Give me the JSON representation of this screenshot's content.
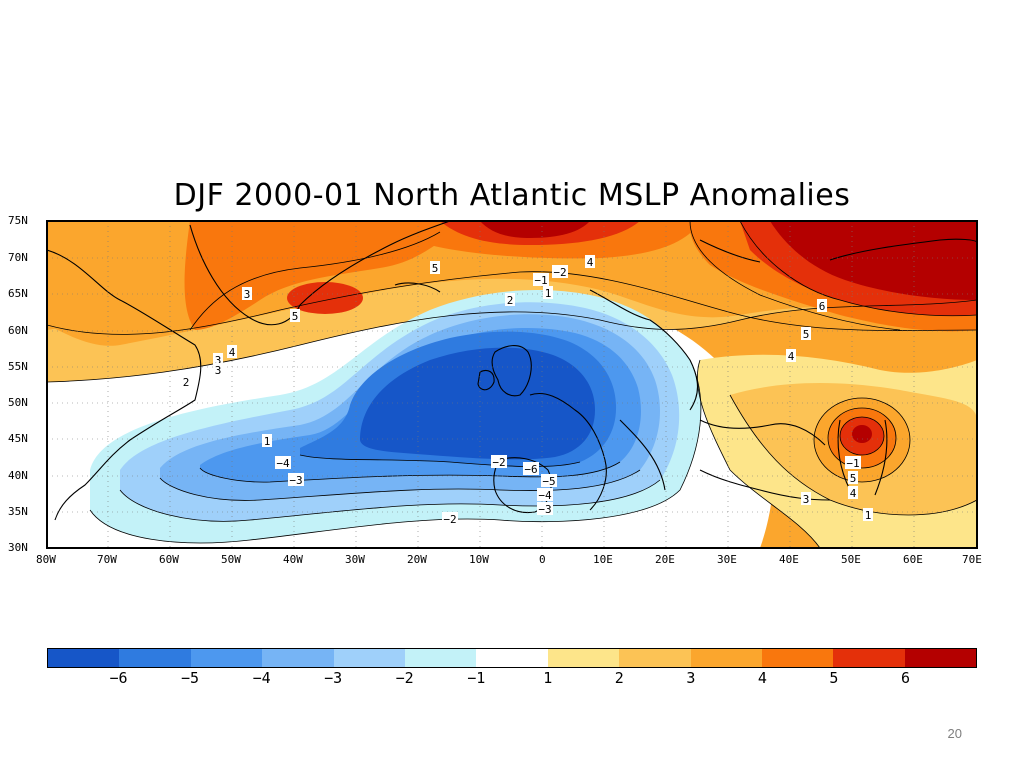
{
  "title": "DJF 2000-01 North Atlantic MSLP Anomalies",
  "page_number": "20",
  "map": {
    "lat_labels": [
      "75N",
      "70N",
      "65N",
      "60N",
      "55N",
      "50N",
      "45N",
      "40N",
      "35N",
      "30N"
    ],
    "lon_labels": [
      "80W",
      "70W",
      "60W",
      "50W",
      "40W",
      "30W",
      "20W",
      "10W",
      "0",
      "10E",
      "20E",
      "30E",
      "40E",
      "50E",
      "60E",
      "70E"
    ],
    "contour_labels": [
      "5",
      "4",
      "3",
      "−1",
      "−2",
      "1",
      "3",
      "5",
      "6",
      "5",
      "4",
      "4",
      "3",
      "2",
      "1",
      "−4",
      "−3",
      "−2",
      "−6",
      "−5",
      "−4",
      "−3",
      "−2",
      "−1",
      "5",
      "4",
      "3",
      "1",
      "2"
    ]
  },
  "colorbar": {
    "colors": [
      "#1656c8",
      "#2f7be0",
      "#4d98ef",
      "#76b4f5",
      "#9fd0fa",
      "#c3f2f8",
      "#ffffff",
      "#fde58a",
      "#fcc355",
      "#fba62d",
      "#f9770d",
      "#e4300a",
      "#b40000"
    ],
    "tick_labels": [
      "−6",
      "−5",
      "−4",
      "−3",
      "−2",
      "−1",
      "1",
      "2",
      "3",
      "4",
      "5",
      "6"
    ]
  }
}
